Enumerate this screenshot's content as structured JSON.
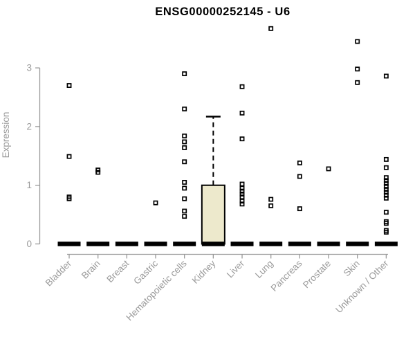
{
  "chart_data": {
    "type": "boxplot",
    "title": "ENSG00000252145 - U6",
    "ylabel": "Expression",
    "xlabel": "",
    "yticks": [
      0,
      1,
      2,
      3
    ],
    "ylim": [
      0,
      3.75
    ],
    "grid": false,
    "legend": null,
    "categories": [
      "Bladder",
      "Brain",
      "Breast",
      "Gastric",
      "Hematopoietic cells",
      "Kidney",
      "Liver",
      "Lung",
      "Pancreas",
      "Prostate",
      "Skin",
      "Unknown / Other"
    ],
    "boxes": [
      {
        "category": "Bladder",
        "q1": 0,
        "median": 0,
        "q3": 0,
        "whisker_low": 0,
        "whisker_high": 0,
        "outliers": [
          2.7,
          1.49,
          0.8,
          0.77
        ]
      },
      {
        "category": "Brain",
        "q1": 0,
        "median": 0,
        "q3": 0,
        "whisker_low": 0,
        "whisker_high": 0,
        "outliers": [
          1.26,
          1.22
        ]
      },
      {
        "category": "Breast",
        "q1": 0,
        "median": 0,
        "q3": 0,
        "whisker_low": 0,
        "whisker_high": 0,
        "outliers": []
      },
      {
        "category": "Gastric",
        "q1": 0,
        "median": 0,
        "q3": 0,
        "whisker_low": 0,
        "whisker_high": 0,
        "outliers": [
          0.7
        ]
      },
      {
        "category": "Hematopoietic cells",
        "q1": 0,
        "median": 0,
        "q3": 0,
        "whisker_low": 0,
        "whisker_high": 0,
        "outliers": [
          2.9,
          2.3,
          1.84,
          1.74,
          1.64,
          1.4,
          1.05,
          0.95,
          0.77,
          0.56,
          0.47
        ]
      },
      {
        "category": "Kidney",
        "q1": 0,
        "median": 0,
        "q3": 1.0,
        "whisker_low": 0,
        "whisker_high": 2.17,
        "outliers": []
      },
      {
        "category": "Liver",
        "q1": 0,
        "median": 0,
        "q3": 0,
        "whisker_low": 0,
        "whisker_high": 0,
        "outliers": [
          2.68,
          2.23,
          1.79,
          1.02,
          0.95,
          0.9,
          0.85,
          0.8,
          0.73,
          0.68
        ]
      },
      {
        "category": "Lung",
        "q1": 0,
        "median": 0,
        "q3": 0,
        "whisker_low": 0,
        "whisker_high": 0,
        "outliers": [
          3.67,
          0.76,
          0.65
        ]
      },
      {
        "category": "Pancreas",
        "q1": 0,
        "median": 0,
        "q3": 0,
        "whisker_low": 0,
        "whisker_high": 0,
        "outliers": [
          1.38,
          1.15,
          0.6
        ]
      },
      {
        "category": "Prostate",
        "q1": 0,
        "median": 0,
        "q3": 0,
        "whisker_low": 0,
        "whisker_high": 0,
        "outliers": [
          1.28
        ]
      },
      {
        "category": "Skin",
        "q1": 0,
        "median": 0,
        "q3": 0,
        "whisker_low": 0,
        "whisker_high": 0,
        "outliers": [
          3.45,
          2.98,
          2.75
        ]
      },
      {
        "category": "Unknown / Other",
        "q1": 0,
        "median": 0,
        "q3": 0,
        "whisker_low": 0,
        "whisker_high": 0,
        "outliers": [
          2.86,
          1.44,
          1.3,
          1.13,
          1.08,
          1.03,
          0.98,
          0.93,
          0.88,
          0.83,
          0.78,
          0.54,
          0.38,
          0.35,
          0.23,
          0.2
        ]
      }
    ],
    "colors": {
      "box_fill": "#EDE9CC",
      "box_border": "#000000",
      "outlier": "#000000",
      "axis": "#999999",
      "label": "#9a9a9a",
      "title": "#000000"
    }
  }
}
